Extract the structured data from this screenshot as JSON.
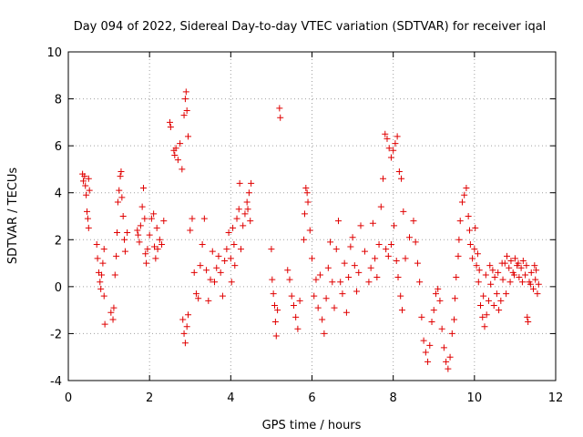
{
  "chart_data": {
    "type": "scatter",
    "marker": "plus",
    "title": "Day 094 of 2022, Sidereal Day-to-day VTEC variation (SDTVAR) for receiver iqal",
    "xlabel": "GPS time / hours",
    "ylabel": "SDTVAR / TECUs",
    "xlim": [
      0,
      12
    ],
    "ylim": [
      -4,
      10
    ],
    "xticks": [
      0,
      2,
      4,
      6,
      8,
      10,
      12
    ],
    "yticks": [
      -4,
      -2,
      0,
      2,
      4,
      6,
      8,
      10
    ],
    "grid": true,
    "series_color": "#e00000",
    "series": [
      {
        "name": "SDTVAR",
        "points": [
          [
            0.35,
            4.8
          ],
          [
            0.37,
            4.5
          ],
          [
            0.4,
            4.7
          ],
          [
            0.42,
            4.3
          ],
          [
            0.44,
            3.9
          ],
          [
            0.46,
            3.2
          ],
          [
            0.48,
            2.9
          ],
          [
            0.5,
            2.5
          ],
          [
            0.52,
            4.1
          ],
          [
            0.5,
            4.6
          ],
          [
            0.7,
            1.8
          ],
          [
            0.72,
            1.2
          ],
          [
            0.75,
            0.6
          ],
          [
            0.78,
            0.2
          ],
          [
            0.8,
            -0.1
          ],
          [
            0.82,
            0.5
          ],
          [
            0.85,
            1.0
          ],
          [
            0.88,
            1.6
          ],
          [
            0.9,
            -1.6
          ],
          [
            0.88,
            -0.4
          ],
          [
            1.05,
            -1.1
          ],
          [
            1.1,
            -1.4
          ],
          [
            1.12,
            -0.9
          ],
          [
            1.15,
            0.5
          ],
          [
            1.18,
            1.3
          ],
          [
            1.2,
            2.3
          ],
          [
            1.22,
            3.6
          ],
          [
            1.25,
            4.1
          ],
          [
            1.28,
            4.7
          ],
          [
            1.3,
            4.9
          ],
          [
            1.32,
            3.8
          ],
          [
            1.35,
            3.0
          ],
          [
            1.38,
            2.0
          ],
          [
            1.4,
            1.5
          ],
          [
            1.45,
            2.3
          ],
          [
            1.7,
            2.4
          ],
          [
            1.72,
            2.2
          ],
          [
            1.75,
            1.9
          ],
          [
            1.78,
            2.6
          ],
          [
            1.82,
            3.4
          ],
          [
            1.85,
            4.2
          ],
          [
            1.88,
            2.9
          ],
          [
            1.9,
            1.4
          ],
          [
            1.92,
            1.0
          ],
          [
            1.95,
            1.6
          ],
          [
            2.0,
            2.2
          ],
          [
            2.05,
            2.9
          ],
          [
            2.1,
            3.1
          ],
          [
            2.12,
            1.7
          ],
          [
            2.15,
            1.2
          ],
          [
            2.2,
            1.6
          ],
          [
            2.25,
            2.0
          ],
          [
            2.3,
            1.8
          ],
          [
            2.35,
            2.8
          ],
          [
            2.18,
            2.5
          ],
          [
            2.5,
            7.0
          ],
          [
            2.52,
            6.8
          ],
          [
            2.6,
            5.8
          ],
          [
            2.62,
            5.6
          ],
          [
            2.65,
            5.9
          ],
          [
            2.7,
            5.4
          ],
          [
            2.75,
            6.1
          ],
          [
            2.8,
            5.0
          ],
          [
            2.85,
            7.3
          ],
          [
            2.88,
            8.0
          ],
          [
            2.9,
            8.3
          ],
          [
            2.92,
            7.5
          ],
          [
            2.95,
            6.4
          ],
          [
            2.82,
            -1.4
          ],
          [
            2.85,
            -2.0
          ],
          [
            2.88,
            -2.4
          ],
          [
            2.92,
            -1.7
          ],
          [
            2.95,
            -1.2
          ],
          [
            3.0,
            2.4
          ],
          [
            3.05,
            2.9
          ],
          [
            3.1,
            0.6
          ],
          [
            3.15,
            -0.3
          ],
          [
            3.2,
            -0.5
          ],
          [
            3.25,
            0.9
          ],
          [
            3.3,
            1.8
          ],
          [
            3.35,
            2.9
          ],
          [
            3.4,
            0.7
          ],
          [
            3.45,
            -0.6
          ],
          [
            3.5,
            0.3
          ],
          [
            3.55,
            1.5
          ],
          [
            3.6,
            0.2
          ],
          [
            3.65,
            0.8
          ],
          [
            3.7,
            1.3
          ],
          [
            3.75,
            0.6
          ],
          [
            3.8,
            -0.4
          ],
          [
            3.85,
            1.1
          ],
          [
            3.9,
            1.6
          ],
          [
            3.95,
            2.3
          ],
          [
            4.0,
            1.2
          ],
          [
            4.02,
            0.2
          ],
          [
            4.05,
            2.5
          ],
          [
            4.08,
            1.8
          ],
          [
            4.1,
            0.9
          ],
          [
            4.15,
            2.9
          ],
          [
            4.2,
            3.3
          ],
          [
            4.22,
            4.4
          ],
          [
            4.25,
            1.6
          ],
          [
            4.3,
            2.6
          ],
          [
            4.35,
            3.1
          ],
          [
            4.4,
            3.6
          ],
          [
            4.45,
            4.0
          ],
          [
            4.5,
            4.4
          ],
          [
            4.42,
            3.3
          ],
          [
            4.48,
            2.8
          ],
          [
            5.0,
            1.6
          ],
          [
            5.02,
            0.3
          ],
          [
            5.05,
            -0.3
          ],
          [
            5.08,
            -0.8
          ],
          [
            5.1,
            -1.5
          ],
          [
            5.12,
            -2.1
          ],
          [
            5.15,
            -1.0
          ],
          [
            5.2,
            7.6
          ],
          [
            5.22,
            7.2
          ],
          [
            5.4,
            0.7
          ],
          [
            5.45,
            0.3
          ],
          [
            5.5,
            -0.4
          ],
          [
            5.55,
            -0.8
          ],
          [
            5.6,
            -1.3
          ],
          [
            5.65,
            -1.8
          ],
          [
            5.7,
            -0.6
          ],
          [
            5.8,
            2.0
          ],
          [
            5.82,
            3.1
          ],
          [
            5.85,
            4.2
          ],
          [
            5.88,
            4.0
          ],
          [
            5.9,
            3.6
          ],
          [
            5.95,
            2.4
          ],
          [
            6.0,
            1.2
          ],
          [
            6.05,
            -0.4
          ],
          [
            6.1,
            0.3
          ],
          [
            6.15,
            -0.9
          ],
          [
            6.2,
            0.5
          ],
          [
            6.25,
            -1.4
          ],
          [
            6.3,
            -2.0
          ],
          [
            6.35,
            -0.5
          ],
          [
            6.4,
            0.8
          ],
          [
            6.45,
            1.9
          ],
          [
            6.5,
            0.2
          ],
          [
            6.55,
            -0.9
          ],
          [
            6.6,
            1.6
          ],
          [
            6.65,
            2.8
          ],
          [
            6.7,
            0.2
          ],
          [
            6.75,
            -0.3
          ],
          [
            6.8,
            1.0
          ],
          [
            6.85,
            -1.1
          ],
          [
            6.9,
            0.4
          ],
          [
            6.95,
            1.7
          ],
          [
            7.0,
            2.1
          ],
          [
            7.05,
            0.9
          ],
          [
            7.1,
            -0.2
          ],
          [
            7.15,
            0.6
          ],
          [
            7.2,
            2.6
          ],
          [
            7.3,
            1.5
          ],
          [
            7.4,
            0.2
          ],
          [
            7.45,
            0.8
          ],
          [
            7.5,
            2.7
          ],
          [
            7.55,
            1.2
          ],
          [
            7.6,
            0.4
          ],
          [
            7.65,
            1.8
          ],
          [
            7.7,
            3.4
          ],
          [
            7.75,
            4.6
          ],
          [
            7.8,
            6.5
          ],
          [
            7.85,
            6.3
          ],
          [
            7.9,
            5.9
          ],
          [
            7.95,
            5.5
          ],
          [
            8.0,
            5.8
          ],
          [
            8.05,
            6.1
          ],
          [
            8.1,
            6.4
          ],
          [
            8.15,
            4.9
          ],
          [
            8.2,
            4.6
          ],
          [
            8.25,
            3.2
          ],
          [
            7.82,
            1.6
          ],
          [
            7.88,
            1.3
          ],
          [
            7.95,
            1.8
          ],
          [
            8.02,
            2.6
          ],
          [
            8.08,
            1.1
          ],
          [
            8.12,
            0.4
          ],
          [
            8.18,
            -0.4
          ],
          [
            8.22,
            -1.0
          ],
          [
            8.3,
            1.2
          ],
          [
            8.4,
            2.1
          ],
          [
            8.5,
            2.8
          ],
          [
            8.55,
            1.9
          ],
          [
            8.6,
            1.0
          ],
          [
            8.65,
            0.2
          ],
          [
            8.7,
            -1.3
          ],
          [
            8.75,
            -2.3
          ],
          [
            8.8,
            -2.8
          ],
          [
            8.85,
            -3.2
          ],
          [
            8.9,
            -2.5
          ],
          [
            8.95,
            -1.5
          ],
          [
            9.0,
            -1.0
          ],
          [
            9.05,
            -0.3
          ],
          [
            9.1,
            -0.1
          ],
          [
            9.15,
            -0.6
          ],
          [
            9.2,
            -1.8
          ],
          [
            9.25,
            -2.6
          ],
          [
            9.3,
            -3.2
          ],
          [
            9.35,
            -3.5
          ],
          [
            9.4,
            -3.0
          ],
          [
            9.45,
            -2.0
          ],
          [
            9.5,
            -1.4
          ],
          [
            9.52,
            -0.5
          ],
          [
            9.55,
            0.4
          ],
          [
            9.6,
            1.3
          ],
          [
            9.62,
            2.0
          ],
          [
            9.65,
            2.8
          ],
          [
            9.7,
            3.6
          ],
          [
            9.75,
            3.9
          ],
          [
            9.8,
            4.2
          ],
          [
            9.85,
            3.0
          ],
          [
            9.88,
            2.4
          ],
          [
            9.9,
            1.8
          ],
          [
            9.95,
            1.2
          ],
          [
            10.0,
            1.6
          ],
          [
            10.05,
            0.9
          ],
          [
            10.1,
            0.2
          ],
          [
            10.15,
            -0.8
          ],
          [
            10.2,
            -1.3
          ],
          [
            10.25,
            -1.7
          ],
          [
            10.3,
            -1.2
          ],
          [
            10.35,
            -0.6
          ],
          [
            10.4,
            0.1
          ],
          [
            10.45,
            0.7
          ],
          [
            10.5,
            0.4
          ],
          [
            10.55,
            -0.3
          ],
          [
            10.6,
            -1.0
          ],
          [
            10.65,
            -0.6
          ],
          [
            10.7,
            0.3
          ],
          [
            10.75,
            1.0
          ],
          [
            10.8,
            1.3
          ],
          [
            10.85,
            0.8
          ],
          [
            10.9,
            1.1
          ],
          [
            10.95,
            0.6
          ],
          [
            11.0,
            1.2
          ],
          [
            11.05,
            0.9
          ],
          [
            11.1,
            0.4
          ],
          [
            11.15,
            0.8
          ],
          [
            11.2,
            1.1
          ],
          [
            11.25,
            0.5
          ],
          [
            11.3,
            -1.3
          ],
          [
            11.32,
            -1.5
          ],
          [
            11.35,
            0.2
          ],
          [
            11.4,
            0.6
          ],
          [
            11.45,
            -0.1
          ],
          [
            11.5,
            0.3
          ],
          [
            11.52,
            0.7
          ],
          [
            11.55,
            -0.3
          ],
          [
            11.58,
            0.1
          ],
          [
            10.02,
            2.5
          ],
          [
            10.08,
            1.4
          ],
          [
            10.12,
            0.7
          ],
          [
            10.22,
            -0.4
          ],
          [
            10.28,
            0.5
          ],
          [
            10.38,
            0.9
          ],
          [
            10.48,
            -0.8
          ],
          [
            10.58,
            0.6
          ],
          [
            10.68,
            1.0
          ],
          [
            10.78,
            -0.3
          ],
          [
            10.88,
            0.2
          ],
          [
            10.98,
            0.5
          ],
          [
            11.08,
            1.0
          ],
          [
            11.18,
            0.2
          ],
          [
            11.28,
            0.9
          ],
          [
            11.38,
            0.1
          ],
          [
            11.48,
            0.9
          ]
        ]
      }
    ]
  }
}
